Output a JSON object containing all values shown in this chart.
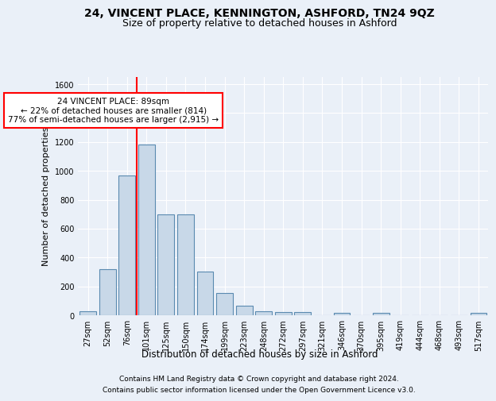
{
  "title1": "24, VINCENT PLACE, KENNINGTON, ASHFORD, TN24 9QZ",
  "title2": "Size of property relative to detached houses in Ashford",
  "xlabel": "Distribution of detached houses by size in Ashford",
  "ylabel": "Number of detached properties",
  "footer1": "Contains HM Land Registry data © Crown copyright and database right 2024.",
  "footer2": "Contains public sector information licensed under the Open Government Licence v3.0.",
  "bar_labels": [
    "27sqm",
    "52sqm",
    "76sqm",
    "101sqm",
    "125sqm",
    "150sqm",
    "174sqm",
    "199sqm",
    "223sqm",
    "248sqm",
    "272sqm",
    "297sqm",
    "321sqm",
    "346sqm",
    "370sqm",
    "395sqm",
    "419sqm",
    "444sqm",
    "468sqm",
    "493sqm",
    "517sqm"
  ],
  "bar_values": [
    30,
    320,
    970,
    1180,
    700,
    700,
    300,
    155,
    65,
    30,
    20,
    20,
    0,
    15,
    0,
    15,
    0,
    0,
    0,
    0,
    15
  ],
  "bar_color": "#c8d8e8",
  "bar_edge_color": "#5a8ab0",
  "vline_color": "red",
  "annotation_text": "24 VINCENT PLACE: 89sqm\n← 22% of detached houses are smaller (814)\n77% of semi-detached houses are larger (2,915) →",
  "annotation_box_color": "white",
  "annotation_box_edge": "red",
  "ylim": [
    0,
    1650
  ],
  "yticks": [
    0,
    200,
    400,
    600,
    800,
    1000,
    1200,
    1400,
    1600
  ],
  "bg_color": "#eaf0f8",
  "plot_bg_color": "#eaf0f8",
  "grid_color": "white",
  "title1_fontsize": 10,
  "title2_fontsize": 9,
  "xlabel_fontsize": 8.5,
  "ylabel_fontsize": 8,
  "tick_fontsize": 7,
  "footer_fontsize": 6.5,
  "annot_fontsize": 7.5
}
